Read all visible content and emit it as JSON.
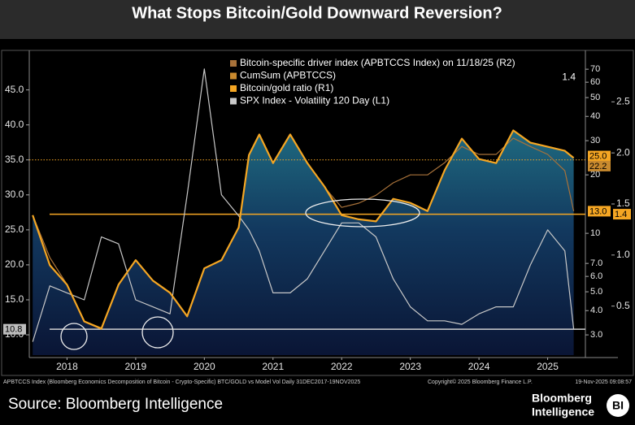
{
  "chart_data": {
    "type": "line",
    "title": "What Stops Bitcoin/Gold Downward Reversion?",
    "x": [
      2018.0,
      2018.25,
      2018.5,
      2018.75,
      2019.0,
      2019.25,
      2019.5,
      2019.75,
      2020.0,
      2020.25,
      2020.5,
      2020.75,
      2021.0,
      2021.15,
      2021.3,
      2021.5,
      2021.75,
      2022.0,
      2022.25,
      2022.5,
      2022.75,
      2023.0,
      2023.25,
      2023.5,
      2023.75,
      2024.0,
      2024.25,
      2024.5,
      2024.75,
      2025.0,
      2025.25,
      2025.5,
      2025.75,
      2025.88
    ],
    "xlim": [
      2017.95,
      2026.05
    ],
    "xticks": [
      {
        "value": 2018.5,
        "label": "2018"
      },
      {
        "value": 2019.5,
        "label": "2019"
      },
      {
        "value": 2020.5,
        "label": "2020"
      },
      {
        "value": 2021.5,
        "label": "2021"
      },
      {
        "value": 2022.5,
        "label": "2022"
      },
      {
        "value": 2023.5,
        "label": "2023"
      },
      {
        "value": 2024.5,
        "label": "2024"
      },
      {
        "value": 2025.5,
        "label": "2025"
      }
    ],
    "ylim": [
      7.1,
      50.3
    ],
    "yticks": [
      {
        "value": 10,
        "label": "10.0"
      },
      {
        "value": 15,
        "label": "15.0"
      },
      {
        "value": 20,
        "label": "20.0"
      },
      {
        "value": 25,
        "label": "25.0"
      },
      {
        "value": 30,
        "label": "30.0"
      },
      {
        "value": 35,
        "label": "35.0"
      },
      {
        "value": 40,
        "label": "40.0"
      },
      {
        "value": 45,
        "label": "45.0"
      }
    ],
    "y2lim": [
      2.36,
      85
    ],
    "y2log": true,
    "y2ticks": [
      {
        "value": 3,
        "label": "3.0"
      },
      {
        "value": 4,
        "label": "4.0"
      },
      {
        "value": 5,
        "label": "5.0"
      },
      {
        "value": 6,
        "label": "6.0"
      },
      {
        "value": 7,
        "label": "7.0"
      },
      10,
      20,
      30,
      40,
      50,
      60,
      70
    ],
    "y3lim": [
      0.02,
      2.98
    ],
    "y3ticks": [
      0.5,
      {
        "value": 1.0,
        "label": "1.0"
      },
      1.5,
      {
        "value": 2.0,
        "label": "2.0"
      },
      2.5
    ],
    "series": [
      {
        "name": "Bitcoin-specific driver index (APBTCCS Index) on 11/18/25 (R2)",
        "color": "#a8723a",
        "axis": "y2",
        "values": [
          12.4,
          7.5,
          5.45,
          3.5,
          3.21,
          5.45,
          7.28,
          5.72,
          4.95,
          3.71,
          6.61,
          7.28,
          10.7,
          25.5,
          32.4,
          23.1,
          32.4,
          23.1,
          17.3,
          13.6,
          14.3,
          15.7,
          18.2,
          20.0,
          20.0,
          23.1,
          28.0,
          25.5,
          25.5,
          30.9,
          28.0,
          25.5,
          21.0,
          13.0
        ]
      },
      {
        "name": "CumSum (APBTCCS)",
        "color": "#c98a2e",
        "last_label": "1.4"
      },
      {
        "name": "Bitcoin/gold ratio (R1)",
        "color": "#f5a623",
        "axis": "y3",
        "fill": true,
        "values": [
          1.39,
          0.9,
          0.71,
          0.35,
          0.28,
          0.71,
          0.95,
          0.75,
          0.63,
          0.4,
          0.87,
          0.95,
          1.27,
          1.98,
          2.18,
          1.9,
          2.18,
          1.9,
          1.67,
          1.39,
          1.35,
          1.33,
          1.55,
          1.51,
          1.43,
          1.83,
          2.14,
          1.94,
          1.9,
          2.22,
          2.1,
          2.06,
          2.02,
          1.95
        ]
      },
      {
        "name": "SPX Index - Volatility 120 Day (L1)",
        "color": "#c8c8c8",
        "axis": "y",
        "values": [
          9,
          17,
          16,
          15,
          24,
          23,
          15,
          14,
          13,
          30,
          48,
          30,
          27,
          25,
          22,
          16,
          16,
          18,
          22,
          26,
          26,
          24,
          18,
          14,
          12,
          12,
          11.5,
          13,
          14,
          14,
          20,
          25,
          22,
          10.8
        ]
      }
    ],
    "reference_lines": [
      {
        "axis": "y",
        "value": 35,
        "color": "#f5a623",
        "style": "dotted"
      },
      {
        "axis": "y3",
        "value": 1.4,
        "color": "#f5a623",
        "style": "solid"
      },
      {
        "axis": "y",
        "value": 10.8,
        "color": "#d0d0d0",
        "style": "solid"
      }
    ],
    "annotations": [
      {
        "axis": "y2",
        "value": 25,
        "label": "25.0",
        "color": "#f5a623"
      },
      {
        "axis": "y2",
        "value": 22.2,
        "label": "22.2",
        "color": "#c98a2e"
      },
      {
        "axis": "y2",
        "value": 13,
        "label": "13.0",
        "color": "#f5a623"
      },
      {
        "axis": "y3",
        "value": 1.4,
        "label": "1.4",
        "color": "#f5a623"
      },
      {
        "axis": "y",
        "value": 10.8,
        "label": "10.8",
        "color": "#bdbdbd"
      }
    ],
    "footer": {
      "description": "APBTCCS Index (Bloomberg Economics Decomposition of Bitcoin - Crypto-Specific) BTC/GOLD vs Model Vol Daily 31DEC2017-19NOV2025",
      "copyright": "Copyright© 2025 Bloomberg Finance L.P.",
      "timestamp": "19-Nov-2025 09:08:57",
      "source": "Source: Bloomberg Intelligence",
      "brand_line1": "Bloomberg",
      "brand_line2": "Intelligence",
      "logo": "BI"
    }
  }
}
